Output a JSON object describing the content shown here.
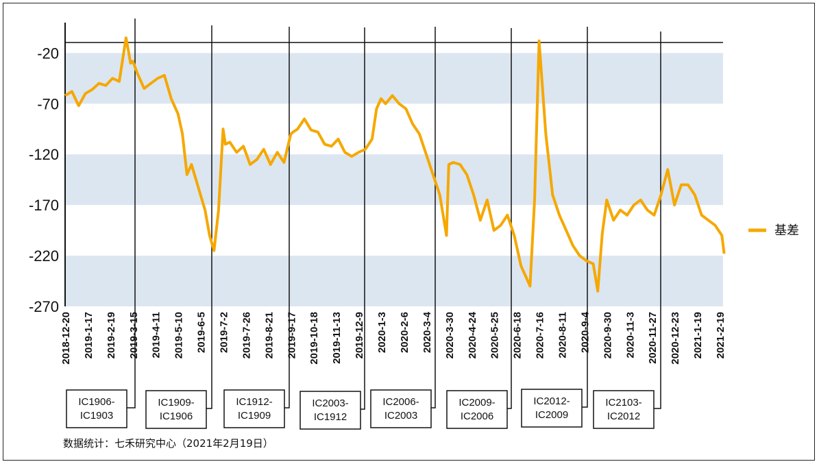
{
  "chart_data": {
    "type": "line",
    "title": "",
    "xlabel": "",
    "ylabel": "",
    "ylim": [
      -270,
      10
    ],
    "yticks": [
      -20,
      -70,
      -120,
      -170,
      -220,
      -270
    ],
    "x_tick_labels": [
      "2018-12-20",
      "2019-1-17",
      "2019-2-19",
      "2019-3-15",
      "2019-4-11",
      "2019-5-10",
      "2019-6-5",
      "2019-7-2",
      "2019-7-26",
      "2019-8-21",
      "2019-9-17",
      "2019-10-18",
      "2019-11-13",
      "2019-12-9",
      "2020-1-3",
      "2020-2-6",
      "2020-3-4",
      "2020-3-30",
      "2020-4-24",
      "2020-5-25",
      "2020-6-18",
      "2020-7-16",
      "2020-8-11",
      "2020-9-4",
      "2020-9-30",
      "2020-11-3",
      "2020-11-27",
      "2020-12-23",
      "2021-1-19",
      "2021-2-19"
    ],
    "background_bands": "alternating light blue / white horizontal bands",
    "grid": false,
    "legend": {
      "position": "right",
      "entries": [
        "基差"
      ]
    },
    "series": [
      {
        "name": "基差",
        "color": "#F5A800",
        "x_index": [
          0,
          0.3,
          0.6,
          0.9,
          1.2,
          1.5,
          1.8,
          2.1,
          2.4,
          2.7,
          2.9,
          3.0,
          3.2,
          3.5,
          3.8,
          4.1,
          4.4,
          4.7,
          5.0,
          5.2,
          5.4,
          5.6,
          5.8,
          6.0,
          6.2,
          6.4,
          6.6,
          6.8,
          7.0,
          7.1,
          7.3,
          7.6,
          7.9,
          8.2,
          8.5,
          8.8,
          9.1,
          9.4,
          9.7,
          10.0,
          10.1,
          10.3,
          10.6,
          10.9,
          11.2,
          11.5,
          11.8,
          12.1,
          12.4,
          12.7,
          13.0,
          13.3,
          13.6,
          13.8,
          14.0,
          14.2,
          14.5,
          14.8,
          15.1,
          15.4,
          15.7,
          16.0,
          16.3,
          16.6,
          16.9,
          17.0,
          17.2,
          17.5,
          17.8,
          18.1,
          18.4,
          18.7,
          19.0,
          19.3,
          19.6,
          19.9,
          20.2,
          20.4,
          20.6,
          20.8,
          21.0,
          21.3,
          21.6,
          21.9,
          22.2,
          22.5,
          22.8,
          23.1,
          23.4,
          23.6,
          23.8,
          24.0,
          24.3,
          24.6,
          24.9,
          25.2,
          25.5,
          25.8,
          26.1,
          26.4,
          26.7,
          27.0,
          27.3,
          27.6,
          27.9,
          28.2,
          28.5,
          28.8,
          29.1,
          29.2
        ],
        "values": [
          -62,
          -58,
          -72,
          -60,
          -56,
          -50,
          -52,
          -45,
          -48,
          -5,
          -30,
          -28,
          -40,
          -55,
          -50,
          -45,
          -42,
          -65,
          -80,
          -100,
          -140,
          -130,
          -145,
          -160,
          -175,
          -200,
          -215,
          -175,
          -95,
          -110,
          -108,
          -118,
          -112,
          -130,
          -125,
          -115,
          -130,
          -118,
          -128,
          -100,
          -98,
          -95,
          -85,
          -96,
          -98,
          -110,
          -112,
          -105,
          -118,
          -122,
          -118,
          -115,
          -105,
          -75,
          -65,
          -70,
          -62,
          -70,
          -75,
          -90,
          -100,
          -120,
          -140,
          -160,
          -200,
          -130,
          -128,
          -130,
          -140,
          -160,
          -185,
          -165,
          -195,
          -190,
          -180,
          -200,
          -230,
          -240,
          -250,
          -165,
          -8,
          -100,
          -160,
          -180,
          -195,
          -210,
          -220,
          -225,
          -228,
          -255,
          -198,
          -165,
          -185,
          -175,
          -180,
          -170,
          -165,
          -175,
          -180,
          -160,
          -135,
          -170,
          -150,
          -150,
          -160,
          -180,
          -185,
          -190,
          -200,
          -218
        ]
      }
    ],
    "contract_boxes": [
      {
        "line1": "IC1906-",
        "line2": "IC1903"
      },
      {
        "line1": "IC1909-",
        "line2": "IC1906"
      },
      {
        "line1": "IC1912-",
        "line2": "IC1909"
      },
      {
        "line1": "IC2003-",
        "line2": "IC1912"
      },
      {
        "line1": "IC2006-",
        "line2": "IC2003"
      },
      {
        "line1": "IC2009-",
        "line2": "IC2006"
      },
      {
        "line1": "IC2012-",
        "line2": "IC2009"
      },
      {
        "line1": "IC2103-",
        "line2": "IC2012"
      }
    ],
    "source_note": "数据统计：七禾研究中心（2021年2月19日）"
  }
}
